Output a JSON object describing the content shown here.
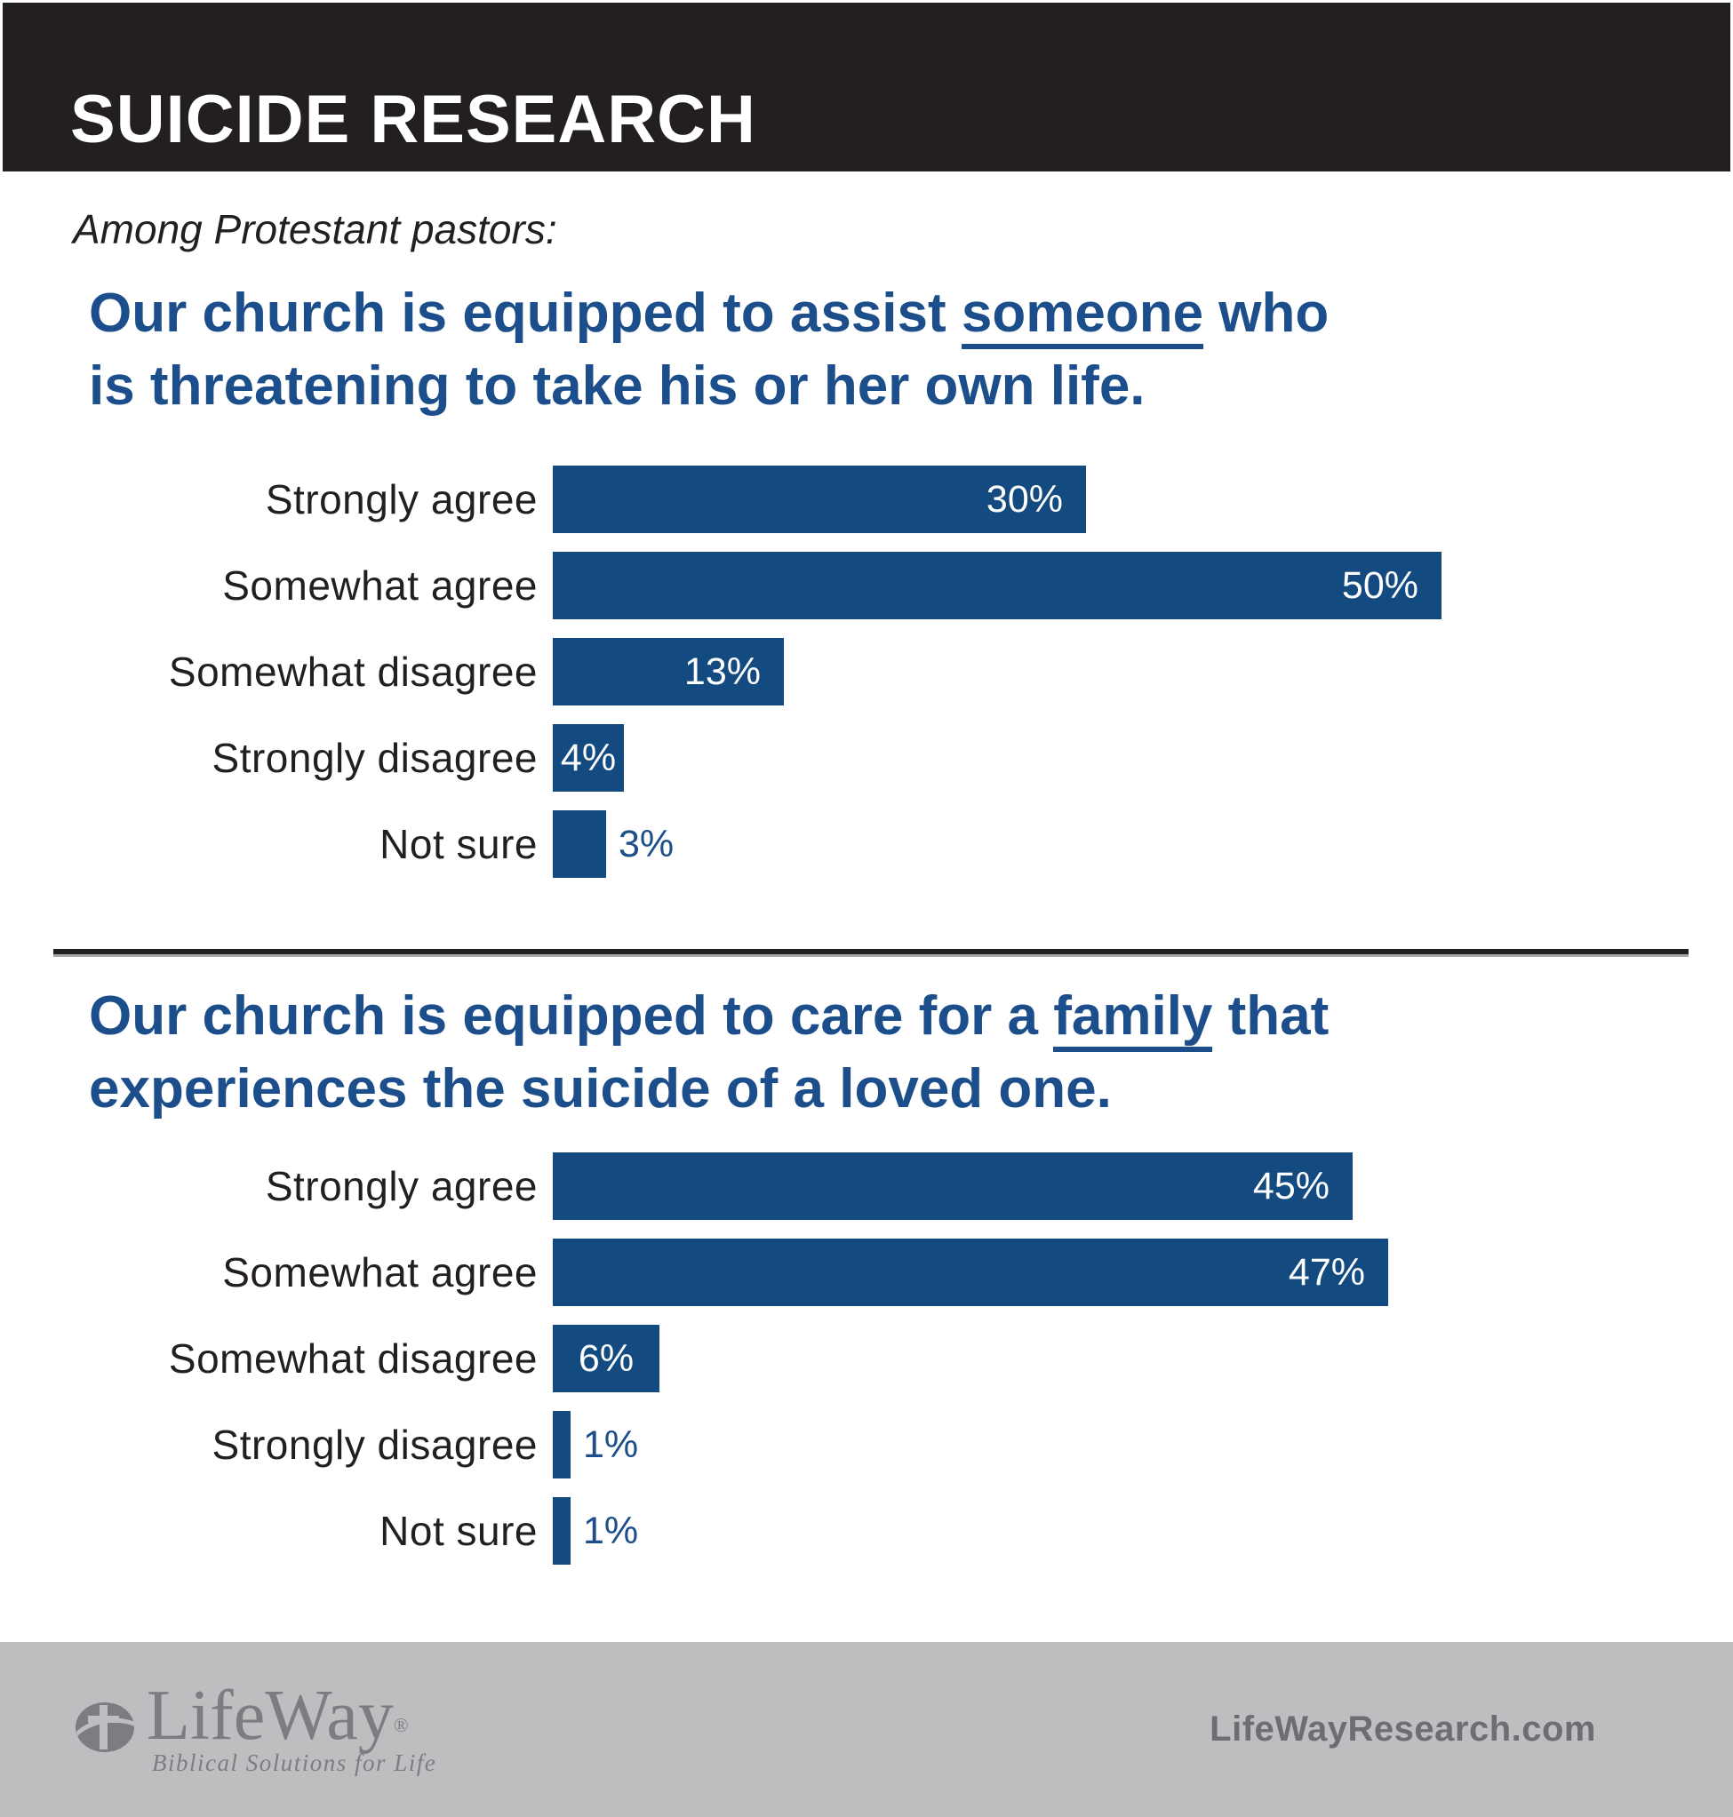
{
  "header": {
    "title": "SUICIDE RESEARCH"
  },
  "subtitle": "Among Protestant pastors:",
  "colors": {
    "header_bg": "#231f20",
    "heading_text": "#1b4e8b",
    "bar": "#134a80",
    "value_inside": "#ffffff",
    "value_outside": "#1b4e8b",
    "divider": "#231f20",
    "footer_bg": "#bcbec0",
    "logo_gray": "#7c7d80",
    "site_text": "#6d6e71"
  },
  "chart_data": [
    {
      "type": "bar",
      "orientation": "horizontal",
      "title": "Our church is equipped to assist someone who is threatening to take his or her own life.",
      "title_parts": {
        "line1_pre": "Our church is equipped to assist ",
        "underline": "someone",
        "line1_post": " who",
        "line2": "is threatening to take his or her own life."
      },
      "categories": [
        "Strongly agree",
        "Somewhat agree",
        "Somewhat disagree",
        "Strongly disagree",
        "Not sure"
      ],
      "values": [
        30,
        50,
        13,
        4,
        3
      ],
      "value_labels": [
        "30%",
        "50%",
        "13%",
        "4%",
        "3%"
      ],
      "unit": "%",
      "xlim": [
        0,
        64
      ],
      "grid": "off",
      "axis": "none",
      "bar_color": "#134a80",
      "legend": "none"
    },
    {
      "type": "bar",
      "orientation": "horizontal",
      "title": "Our church is equipped to care for a family that experiences the suicide of a loved one.",
      "title_parts": {
        "line1_pre": "Our church is equipped to care for a ",
        "underline": "family",
        "line1_post": " that",
        "line2": "experiences the suicide of a loved one."
      },
      "categories": [
        "Strongly agree",
        "Somewhat agree",
        "Somewhat disagree",
        "Strongly disagree",
        "Not sure"
      ],
      "values": [
        45,
        47,
        6,
        1,
        1
      ],
      "value_labels": [
        "45%",
        "47%",
        "6%",
        "1%",
        "1%"
      ],
      "unit": "%",
      "xlim": [
        0,
        64
      ],
      "grid": "off",
      "axis": "none",
      "bar_color": "#134a80",
      "legend": "none"
    }
  ],
  "footer": {
    "logo_name": "LifeWay",
    "logo_reg": "®",
    "logo_tagline": "Biblical Solutions for Life",
    "site": "LifeWayResearch.com"
  }
}
